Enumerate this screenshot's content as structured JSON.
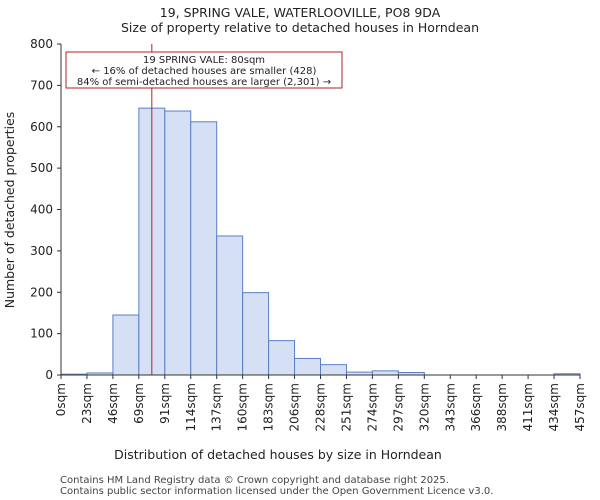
{
  "chart_data": {
    "type": "bar",
    "title": "19, SPRING VALE, WATERLOOVILLE, PO8 9DA",
    "subtitle": "Size of property relative to detached houses in Horndean",
    "xlabel": "Distribution of detached houses by size in Horndean",
    "ylabel": "Number of detached properties",
    "ylim": [
      0,
      800
    ],
    "yticks": [
      0,
      100,
      200,
      300,
      400,
      500,
      600,
      700,
      800
    ],
    "bin_edges": [
      0,
      23,
      46,
      69,
      91,
      114,
      137,
      160,
      183,
      206,
      228,
      251,
      274,
      297,
      320,
      343,
      366,
      388,
      411,
      434,
      457
    ],
    "xtick_labels": [
      "0sqm",
      "23sqm",
      "46sqm",
      "69sqm",
      "91sqm",
      "114sqm",
      "137sqm",
      "160sqm",
      "183sqm",
      "206sqm",
      "228sqm",
      "251sqm",
      "274sqm",
      "297sqm",
      "320sqm",
      "343sqm",
      "366sqm",
      "388sqm",
      "411sqm",
      "434sqm",
      "457sqm"
    ],
    "values": [
      2,
      5,
      145,
      645,
      638,
      612,
      336,
      199,
      83,
      40,
      25,
      7,
      10,
      6,
      0,
      0,
      0,
      0,
      0,
      3
    ],
    "bar_color": "#d6e0f5",
    "bar_edge_color": "#5b7fc2",
    "marker": {
      "value": 80,
      "color": "#b22222",
      "lines": [
        "19 SPRING VALE: 80sqm",
        "← 16% of detached houses are smaller (428)",
        "84% of semi-detached houses are larger (2,301) →"
      ]
    }
  },
  "footer": {
    "line1": "Contains HM Land Registry data © Crown copyright and database right 2025.",
    "line2": "Contains public sector information licensed under the Open Government Licence v3.0."
  }
}
